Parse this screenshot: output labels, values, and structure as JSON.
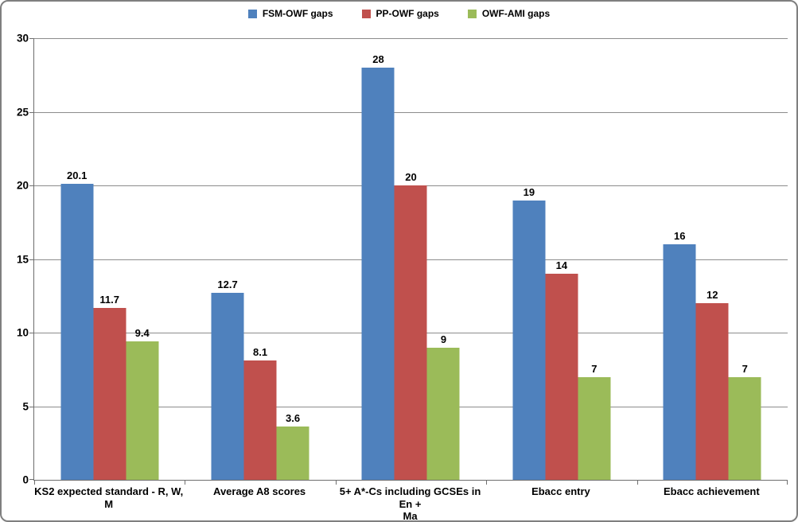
{
  "chart_data": {
    "type": "bar",
    "title": "",
    "xlabel": "",
    "ylabel": "",
    "categories": [
      "KS2 expected standard - R, W, M",
      "Average A8 scores",
      "5+ A*-Cs including GCSEs in En +\nMa",
      "Ebacc entry",
      "Ebacc achievement"
    ],
    "series": [
      {
        "name": "FSM-OWF gaps",
        "color": "#4F81BD",
        "values": [
          20.1,
          12.7,
          28,
          19,
          16
        ]
      },
      {
        "name": "PP-OWF gaps",
        "color": "#C0504D",
        "values": [
          11.7,
          8.1,
          20,
          14,
          12
        ]
      },
      {
        "name": "OWF-AMI gaps",
        "color": "#9BBB59",
        "values": [
          9.4,
          3.6,
          9,
          7,
          7
        ]
      }
    ],
    "ylim": [
      0,
      30
    ],
    "y_tick_step": 5,
    "y_tick_labels": [
      "0",
      "5",
      "10",
      "15",
      "20",
      "25",
      "30"
    ],
    "grid": true,
    "data_labels_visible": true,
    "legend_position": "top-center"
  },
  "style_colors": {
    "gridline": "#8C8C8C",
    "axis_line": "#6E6E6E",
    "frame_border": "#7F7F7F",
    "text": "#000000",
    "background": "#FFFFFF"
  }
}
